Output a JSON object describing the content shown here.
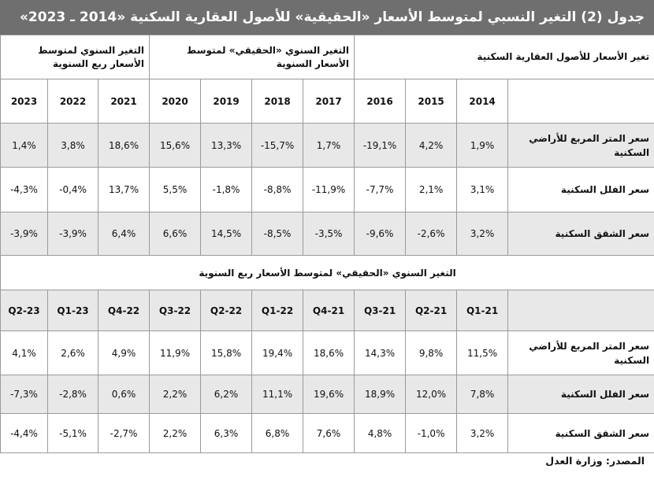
{
  "title": "جدول (2) التغير النسبي لمتوسط الأسعار «الحقيقية» للأصول العقارية السكنية «2014 ـ 2023»",
  "groups": {
    "g1": "تغير الأسعار للأصول العقارية السكنية",
    "g2": "التغير السنوي «الحقيقي» لمتوسط الأسعار السنوية",
    "g3": "التغير السنوي لمتوسط الأسعار ربع السنوية"
  },
  "years": [
    "2014",
    "2015",
    "2016",
    "2017",
    "2018",
    "2019",
    "2020",
    "2021",
    "2022",
    "2023"
  ],
  "annual_rows": [
    {
      "label": "سعر المتر المربع للأراضي السكنية",
      "values": [
        "1,9%",
        "4,2%",
        "-19,1%",
        "1,7%",
        "-15,7%",
        "13,3%",
        "15,6%",
        "18,6%",
        "3,8%",
        "1,4%"
      ]
    },
    {
      "label": "سعر الفلل السكنية",
      "values": [
        "3,1%",
        "2,1%",
        "-7,7%",
        "-11,9%",
        "-8,8%",
        "-1,8%",
        "5,5%",
        "13,7%",
        "-0,4%",
        "-4,3%"
      ]
    },
    {
      "label": "سعر الشقق السكنية",
      "values": [
        "3,2%",
        "-2,6%",
        "-9,6%",
        "-3,5%",
        "-8,5%",
        "14,5%",
        "6,6%",
        "6,4%",
        "-3,9%",
        "-3,9%"
      ]
    }
  ],
  "quarter_section_title": "التغير السنوي «الحقيقي» لمتوسط الأسعار ربع السنوية",
  "quarters": [
    "Q1-21",
    "Q2-21",
    "21-Q3",
    "21-Q4",
    "22-Q1",
    "Q2-22",
    "Q3-22",
    "Q4-22",
    "Q1-23",
    "Q2-23"
  ],
  "quarter_rows": [
    {
      "label": "سعر المتر المربع للأراضي السكنية",
      "values": [
        "11,5%",
        "9,8%",
        "14,3%",
        "18,6%",
        "19,4%",
        "15,8%",
        "11,9%",
        "4,9%",
        "2,6%",
        "4,1%"
      ]
    },
    {
      "label": "سعر الفلل السكنية",
      "values": [
        "7,8%",
        "12,0%",
        "18,9%",
        "19,6%",
        "11,1%",
        "6,2%",
        "2,2%",
        "0,6%",
        "-2,8%",
        "-7,3%"
      ]
    },
    {
      "label": "سعر الشقق السكنية",
      "values": [
        "3,2%",
        "-1,0%",
        "4,8%",
        "7,6%",
        "6,8%",
        "6,3%",
        "2,2%",
        "-2,7%",
        "-5,1%",
        "-4,4%"
      ]
    }
  ],
  "source": "المصدر: وزارة العدل"
}
